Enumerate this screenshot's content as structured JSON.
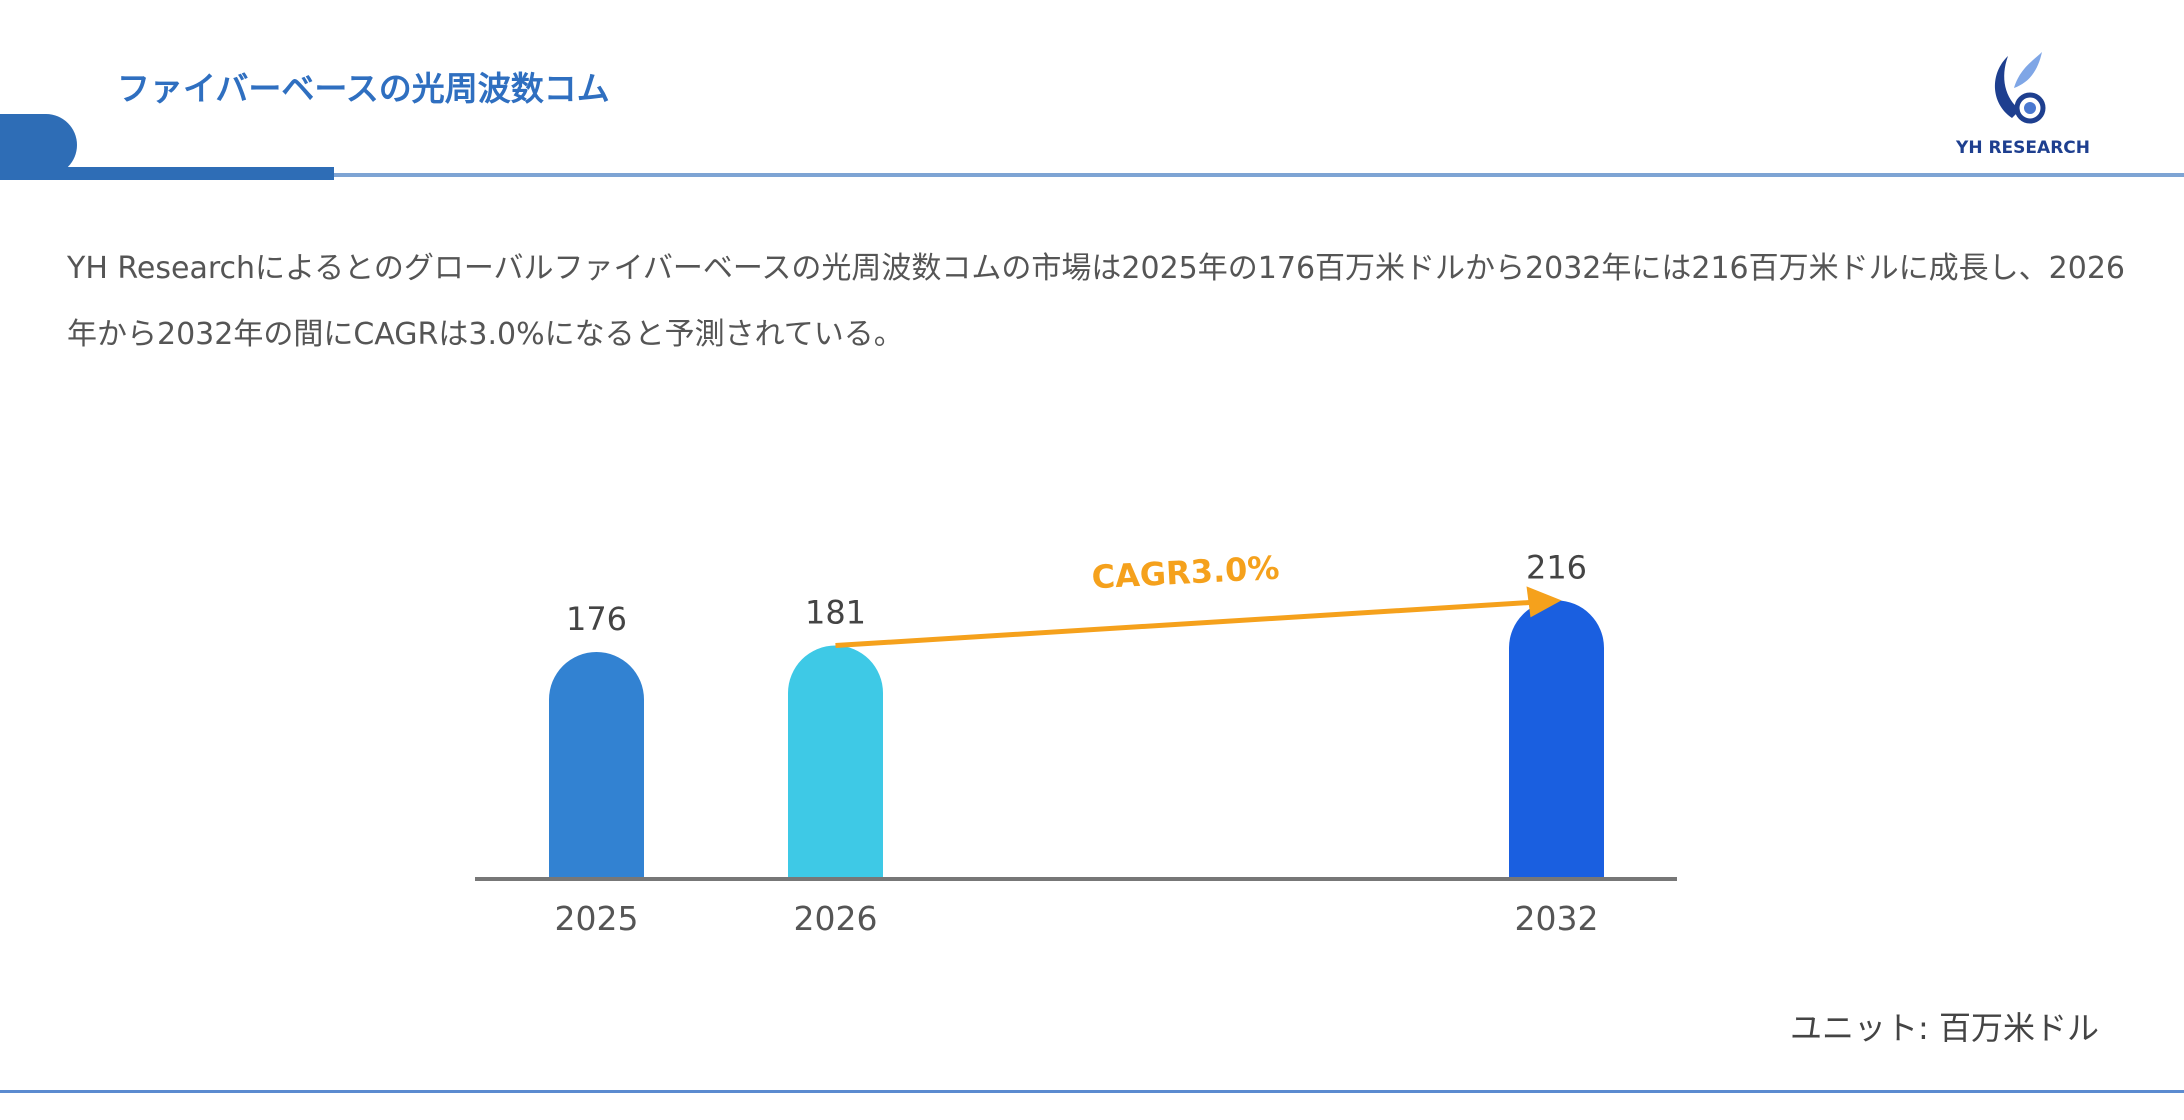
{
  "header": {
    "title": "ファイバーベースの光周波数コム",
    "logo_text": "YH RESEARCH"
  },
  "summary": "YH Researchによるとのグローバルファイバーベースの光周波数コムの市場は2025年の176百万米ドルから2032年には216百万米ドルに成長し、2026年から2032年の間にCAGRは3.0%になると予測されている。",
  "unit_label": "ユニット: 百万米ドル",
  "chart_data": {
    "type": "bar",
    "categories": [
      "2025",
      "2026",
      "2032"
    ],
    "values": [
      176,
      181,
      216
    ],
    "value_labels": [
      "176",
      "181",
      "216"
    ],
    "colors": [
      "#3282d2",
      "#3ec9e6",
      "#1a5fe0"
    ],
    "annotation": {
      "text": "CAGR3.0%",
      "from": "2026",
      "to": "2032",
      "color": "#f5a11c"
    },
    "title": "",
    "xlabel": "",
    "ylabel": ""
  }
}
